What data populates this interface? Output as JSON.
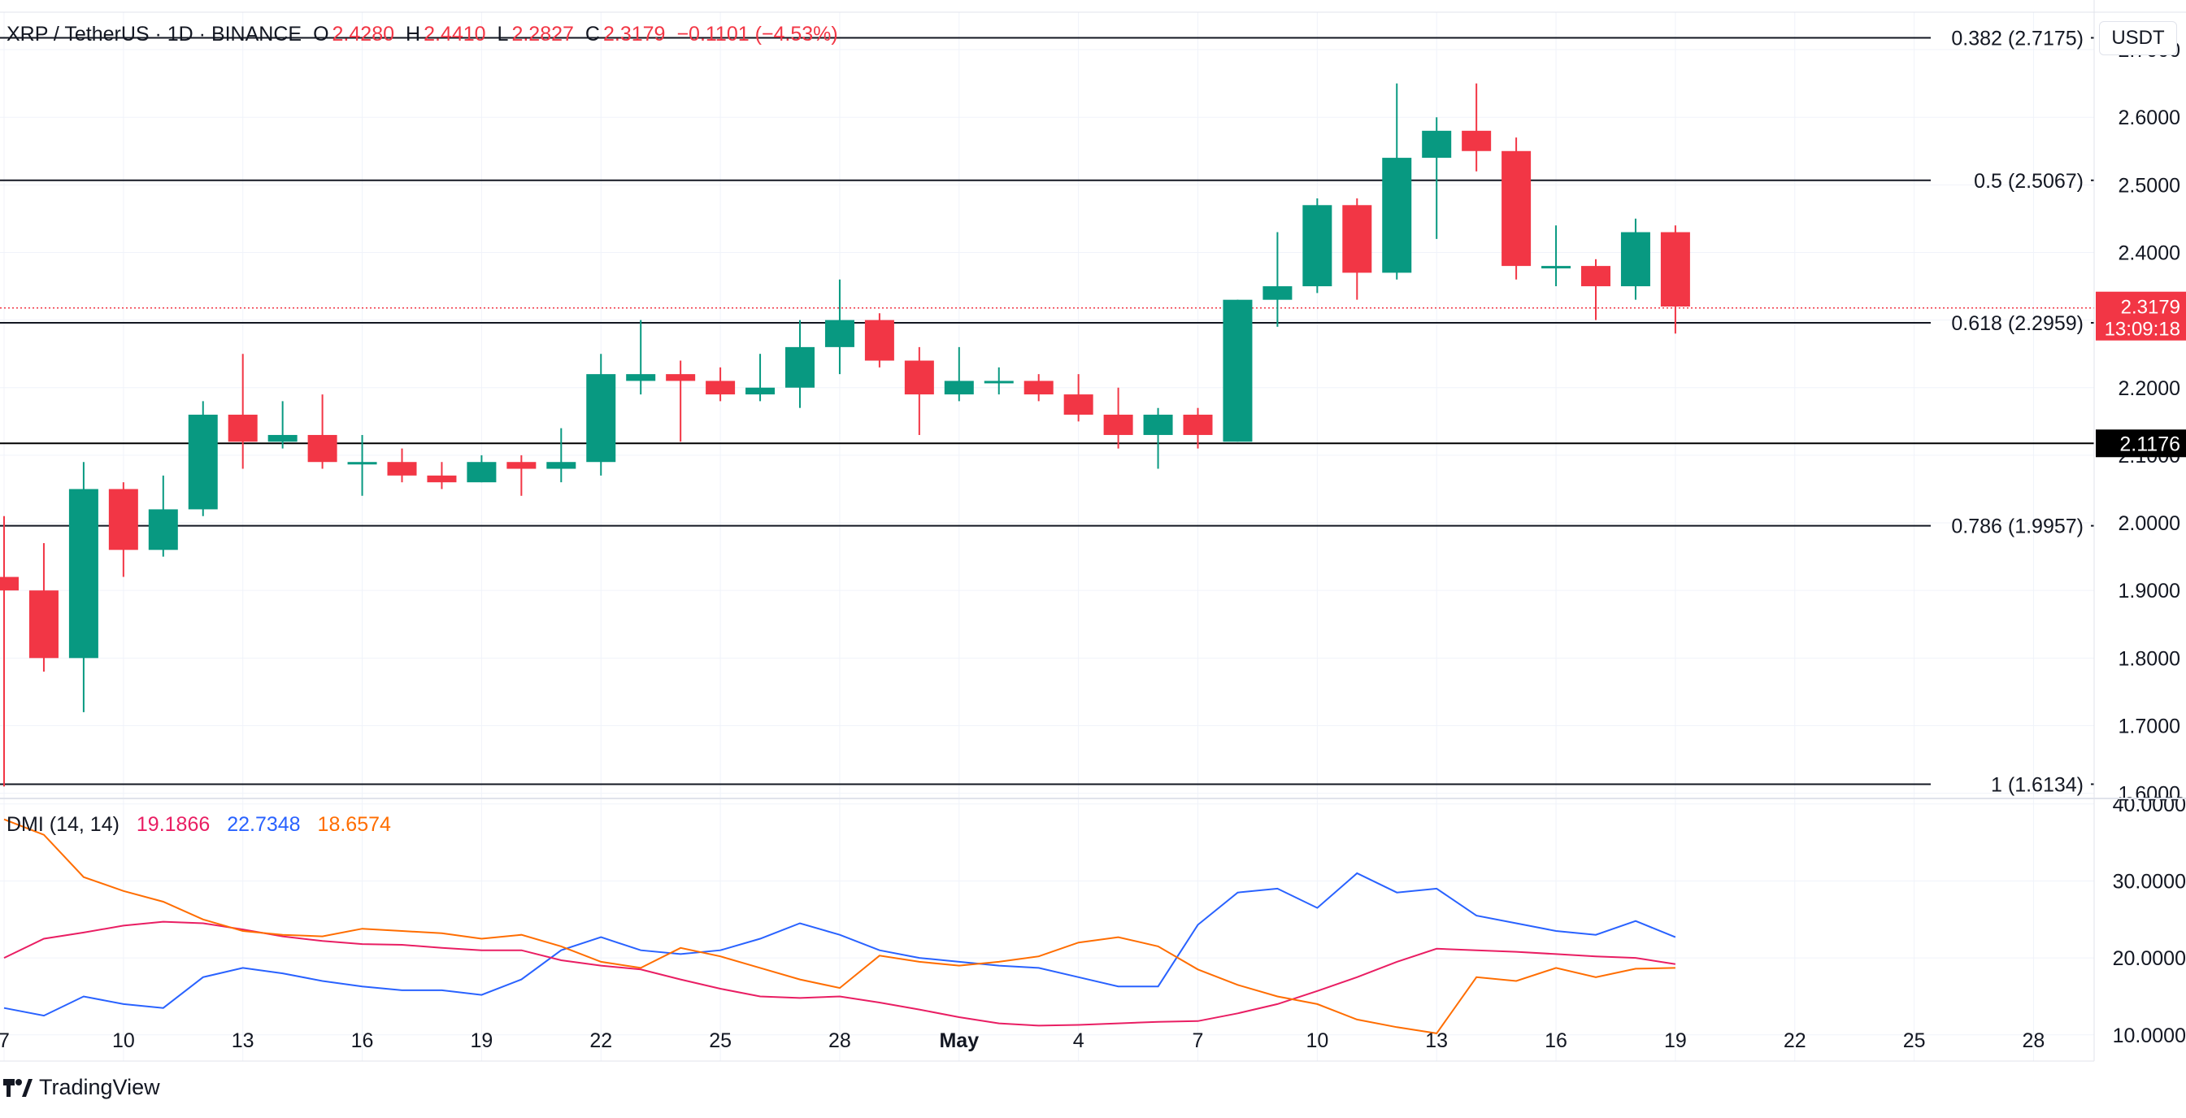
{
  "header": {
    "symbol": "XRP / TetherUS · 1D · BINANCE",
    "open_label": "O",
    "open": "2.4280",
    "high_label": "H",
    "high": "2.4410",
    "low_label": "L",
    "low": "2.2827",
    "close_label": "C",
    "close": "2.3179",
    "change": "−0.1101 (−4.53%)"
  },
  "currency_button": "USDT",
  "branding": "TradingView",
  "colors": {
    "up": "#089981",
    "down": "#f23645",
    "dmi_plus": "#2962ff",
    "dmi_minus": "#f7525f",
    "adx": "#ff6d00",
    "fib": "#131722",
    "grid": "#f0f3fa"
  },
  "chart_data": [
    {
      "type": "candlestick",
      "ylim": [
        1.5887,
        2.7554
      ],
      "y_ticks": [
        "1.6000",
        "1.7000",
        "1.8000",
        "1.9000",
        "2.0000",
        "2.1000",
        "2.2000",
        "2.3000",
        "2.4000",
        "2.5000",
        "2.6000",
        "2.7000"
      ],
      "x_ticks": [
        {
          "i": 0,
          "label": "7"
        },
        {
          "i": 3,
          "label": "10"
        },
        {
          "i": 6,
          "label": "13"
        },
        {
          "i": 9,
          "label": "16"
        },
        {
          "i": 12,
          "label": "19"
        },
        {
          "i": 15,
          "label": "22"
        },
        {
          "i": 18,
          "label": "25"
        },
        {
          "i": 21,
          "label": "28"
        },
        {
          "i": 24,
          "label": "May"
        },
        {
          "i": 27,
          "label": "4"
        },
        {
          "i": 30,
          "label": "7"
        },
        {
          "i": 33,
          "label": "10"
        },
        {
          "i": 36,
          "label": "13"
        },
        {
          "i": 39,
          "label": "16"
        },
        {
          "i": 42,
          "label": "19"
        },
        {
          "i": 45,
          "label": "22"
        },
        {
          "i": 48,
          "label": "25"
        },
        {
          "i": 51,
          "label": "28"
        }
      ],
      "candles": [
        {
          "o": 1.92,
          "h": 2.01,
          "l": 1.61,
          "c": 1.9
        },
        {
          "o": 1.9,
          "h": 1.97,
          "l": 1.78,
          "c": 1.8
        },
        {
          "o": 1.8,
          "h": 2.09,
          "l": 1.72,
          "c": 2.05
        },
        {
          "o": 2.05,
          "h": 2.06,
          "l": 1.92,
          "c": 1.96
        },
        {
          "o": 1.96,
          "h": 2.07,
          "l": 1.95,
          "c": 2.02
        },
        {
          "o": 2.02,
          "h": 2.18,
          "l": 2.01,
          "c": 2.16
        },
        {
          "o": 2.16,
          "h": 2.25,
          "l": 2.08,
          "c": 2.12
        },
        {
          "o": 2.12,
          "h": 2.18,
          "l": 2.11,
          "c": 2.13
        },
        {
          "o": 2.13,
          "h": 2.19,
          "l": 2.08,
          "c": 2.09
        },
        {
          "o": 2.09,
          "h": 2.13,
          "l": 2.04,
          "c": 2.09
        },
        {
          "o": 2.09,
          "h": 2.11,
          "l": 2.06,
          "c": 2.07
        },
        {
          "o": 2.07,
          "h": 2.09,
          "l": 2.05,
          "c": 2.06
        },
        {
          "o": 2.06,
          "h": 2.1,
          "l": 2.06,
          "c": 2.09
        },
        {
          "o": 2.09,
          "h": 2.1,
          "l": 2.04,
          "c": 2.08
        },
        {
          "o": 2.08,
          "h": 2.14,
          "l": 2.06,
          "c": 2.09
        },
        {
          "o": 2.09,
          "h": 2.25,
          "l": 2.07,
          "c": 2.22
        },
        {
          "o": 2.21,
          "h": 2.3,
          "l": 2.19,
          "c": 2.22
        },
        {
          "o": 2.22,
          "h": 2.24,
          "l": 2.12,
          "c": 2.21
        },
        {
          "o": 2.21,
          "h": 2.23,
          "l": 2.18,
          "c": 2.19
        },
        {
          "o": 2.19,
          "h": 2.25,
          "l": 2.18,
          "c": 2.2
        },
        {
          "o": 2.2,
          "h": 2.3,
          "l": 2.17,
          "c": 2.26
        },
        {
          "o": 2.26,
          "h": 2.36,
          "l": 2.22,
          "c": 2.3
        },
        {
          "o": 2.3,
          "h": 2.31,
          "l": 2.23,
          "c": 2.24
        },
        {
          "o": 2.24,
          "h": 2.26,
          "l": 2.13,
          "c": 2.19
        },
        {
          "o": 2.19,
          "h": 2.26,
          "l": 2.18,
          "c": 2.21
        },
        {
          "o": 2.21,
          "h": 2.23,
          "l": 2.19,
          "c": 2.21
        },
        {
          "o": 2.21,
          "h": 2.22,
          "l": 2.18,
          "c": 2.19
        },
        {
          "o": 2.19,
          "h": 2.22,
          "l": 2.15,
          "c": 2.16
        },
        {
          "o": 2.16,
          "h": 2.2,
          "l": 2.11,
          "c": 2.13
        },
        {
          "o": 2.13,
          "h": 2.17,
          "l": 2.08,
          "c": 2.16
        },
        {
          "o": 2.16,
          "h": 2.17,
          "l": 2.11,
          "c": 2.13
        },
        {
          "o": 2.12,
          "h": 2.33,
          "l": 2.12,
          "c": 2.33
        },
        {
          "o": 2.33,
          "h": 2.43,
          "l": 2.29,
          "c": 2.35
        },
        {
          "o": 2.35,
          "h": 2.48,
          "l": 2.34,
          "c": 2.47
        },
        {
          "o": 2.47,
          "h": 2.48,
          "l": 2.33,
          "c": 2.37
        },
        {
          "o": 2.37,
          "h": 2.65,
          "l": 2.36,
          "c": 2.54
        },
        {
          "o": 2.54,
          "h": 2.6,
          "l": 2.42,
          "c": 2.58
        },
        {
          "o": 2.58,
          "h": 2.65,
          "l": 2.52,
          "c": 2.55
        },
        {
          "o": 2.55,
          "h": 2.57,
          "l": 2.36,
          "c": 2.38
        },
        {
          "o": 2.38,
          "h": 2.44,
          "l": 2.35,
          "c": 2.38
        },
        {
          "o": 2.38,
          "h": 2.39,
          "l": 2.3,
          "c": 2.35
        },
        {
          "o": 2.35,
          "h": 2.45,
          "l": 2.33,
          "c": 2.43
        },
        {
          "o": 2.43,
          "h": 2.44,
          "l": 2.28,
          "c": 2.32
        }
      ],
      "fib_levels": [
        {
          "label": "0.382 (2.7175)",
          "value": 2.7175
        },
        {
          "label": "0.5 (2.5067)",
          "value": 2.5067
        },
        {
          "label": "0.618 (2.2959)",
          "value": 2.2959
        },
        {
          "label": "0.786 (1.9957)",
          "value": 1.9957
        },
        {
          "label": "1 (1.6134)",
          "value": 1.6134
        }
      ],
      "horizontal_line": {
        "value": 2.1176,
        "label": "2.1176"
      },
      "last_price": {
        "value": 2.3179,
        "label": "2.3179",
        "countdown": "13:09:18"
      }
    },
    {
      "type": "line",
      "indicator": "DMI",
      "title": "DMI (14, 14)",
      "values_display": [
        "19.1866",
        "22.7348",
        "18.6574"
      ],
      "ylim": [
        6.6,
        40.4
      ],
      "y_ticks": [
        "10.0000",
        "20.0000",
        "30.0000",
        "40.0000"
      ],
      "series": [
        {
          "key": "plus_di",
          "values": [
            13.5,
            12.5,
            15,
            14,
            13.5,
            17.5,
            18.7,
            18,
            17,
            16.3,
            15.8,
            15.8,
            15.2,
            17.2,
            21,
            22.7,
            21,
            20.5,
            21,
            22.5,
            24.5,
            23,
            21,
            20,
            19.5,
            19,
            18.7,
            17.5,
            16.3,
            16.3,
            24.3,
            28.5,
            29,
            26.5,
            31,
            28.5,
            29,
            25.5,
            24.5,
            23.5,
            23,
            24.8,
            22.7
          ]
        },
        {
          "key": "minus_di",
          "values": [
            20,
            22.5,
            23.3,
            24.2,
            24.7,
            24.5,
            23.7,
            22.8,
            22.2,
            21.8,
            21.7,
            21.3,
            21,
            21,
            19.7,
            19,
            18.5,
            17.2,
            16,
            15,
            14.8,
            15,
            14.2,
            13.3,
            12.3,
            11.5,
            11.2,
            11.3,
            11.5,
            11.7,
            11.8,
            12.8,
            14,
            15.7,
            17.5,
            19.5,
            21.2,
            21,
            20.8,
            20.5,
            20.2,
            20,
            19.2
          ]
        },
        {
          "key": "adx",
          "values": [
            38,
            36,
            30.5,
            28.7,
            27.3,
            25,
            23.5,
            23,
            22.8,
            23.8,
            23.5,
            23.2,
            22.5,
            23,
            21.5,
            19.5,
            18.7,
            21.3,
            20.2,
            18.7,
            17.2,
            16.1,
            20.3,
            19.5,
            19,
            19.5,
            20.2,
            22,
            22.7,
            21.5,
            18.5,
            16.5,
            15,
            14,
            12,
            11,
            10.2,
            17.5,
            17,
            18.7,
            17.5,
            18.6,
            18.7
          ]
        }
      ]
    }
  ]
}
